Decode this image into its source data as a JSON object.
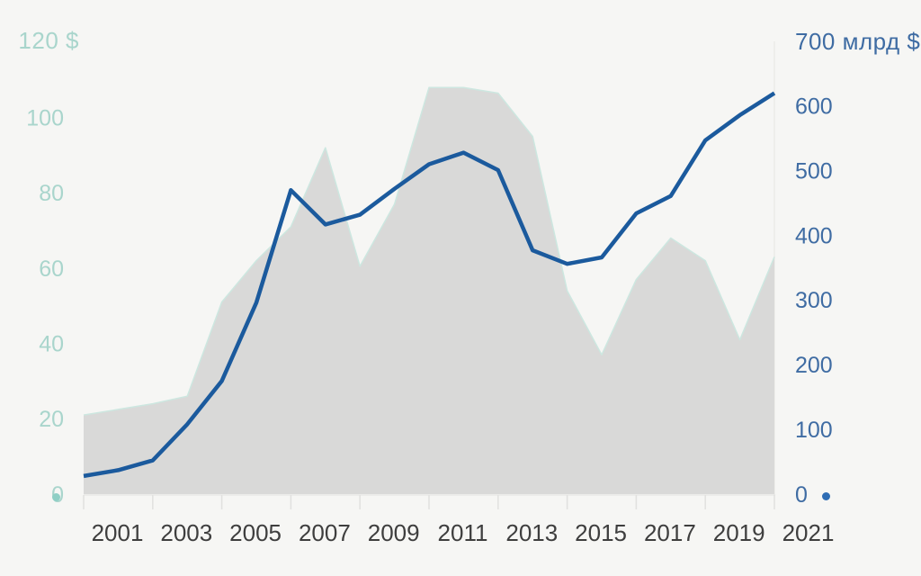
{
  "page": {
    "background": "#f6f6f4"
  },
  "chart_data": {
    "type": "combo-area-line-dual-axis",
    "x": [
      2001,
      2002,
      2003,
      2004,
      2005,
      2006,
      2007,
      2008,
      2009,
      2010,
      2011,
      2012,
      2013,
      2014,
      2015,
      2016,
      2017,
      2018,
      2019,
      2020,
      2021
    ],
    "x_tick_labels": [
      "2001",
      "2003",
      "2005",
      "2007",
      "2009",
      "2011",
      "2013",
      "2015",
      "2017",
      "2019",
      "2021"
    ],
    "left_axis": {
      "title": "120 $",
      "unit": "$",
      "min": 0,
      "max": 120,
      "ticks": [
        0,
        20,
        40,
        60,
        80,
        100
      ],
      "color": "#a9d5cc"
    },
    "right_axis": {
      "title": "700 млрд $",
      "unit": "млрд $",
      "min": 0,
      "max": 700,
      "ticks": [
        0,
        100,
        200,
        300,
        400,
        500,
        600
      ],
      "color": "#3f6ca3"
    },
    "series": [
      {
        "name": "oil-price-usd-area",
        "type": "area",
        "axis": "left",
        "fill": "#d9d9d8",
        "edge": "#cde7e0",
        "values": [
          21,
          22.5,
          24,
          26,
          51,
          62,
          71,
          92,
          60.5,
          77,
          108,
          108,
          106.5,
          95,
          54,
          37,
          57,
          68,
          62,
          41,
          63
        ]
      },
      {
        "name": "reserves-mlrd-usd-line",
        "type": "line",
        "axis": "right",
        "stroke": "#1b5a9d",
        "values": [
          28,
          37,
          52,
          108,
          175,
          296,
          470,
          417,
          432,
          472,
          510,
          528,
          501,
          377,
          356,
          366,
          434,
          461,
          547,
          586,
          620
        ]
      }
    ],
    "x_label_color": "#3e3e3e",
    "tick_mark_color": "#e1e1df",
    "baseline_color": "#e3e3e1",
    "end_gridline_color": "#ebebe8"
  },
  "decorations": {
    "left_dot_color": "#8fcfc5",
    "right_dot_color": "#2e6db4"
  }
}
